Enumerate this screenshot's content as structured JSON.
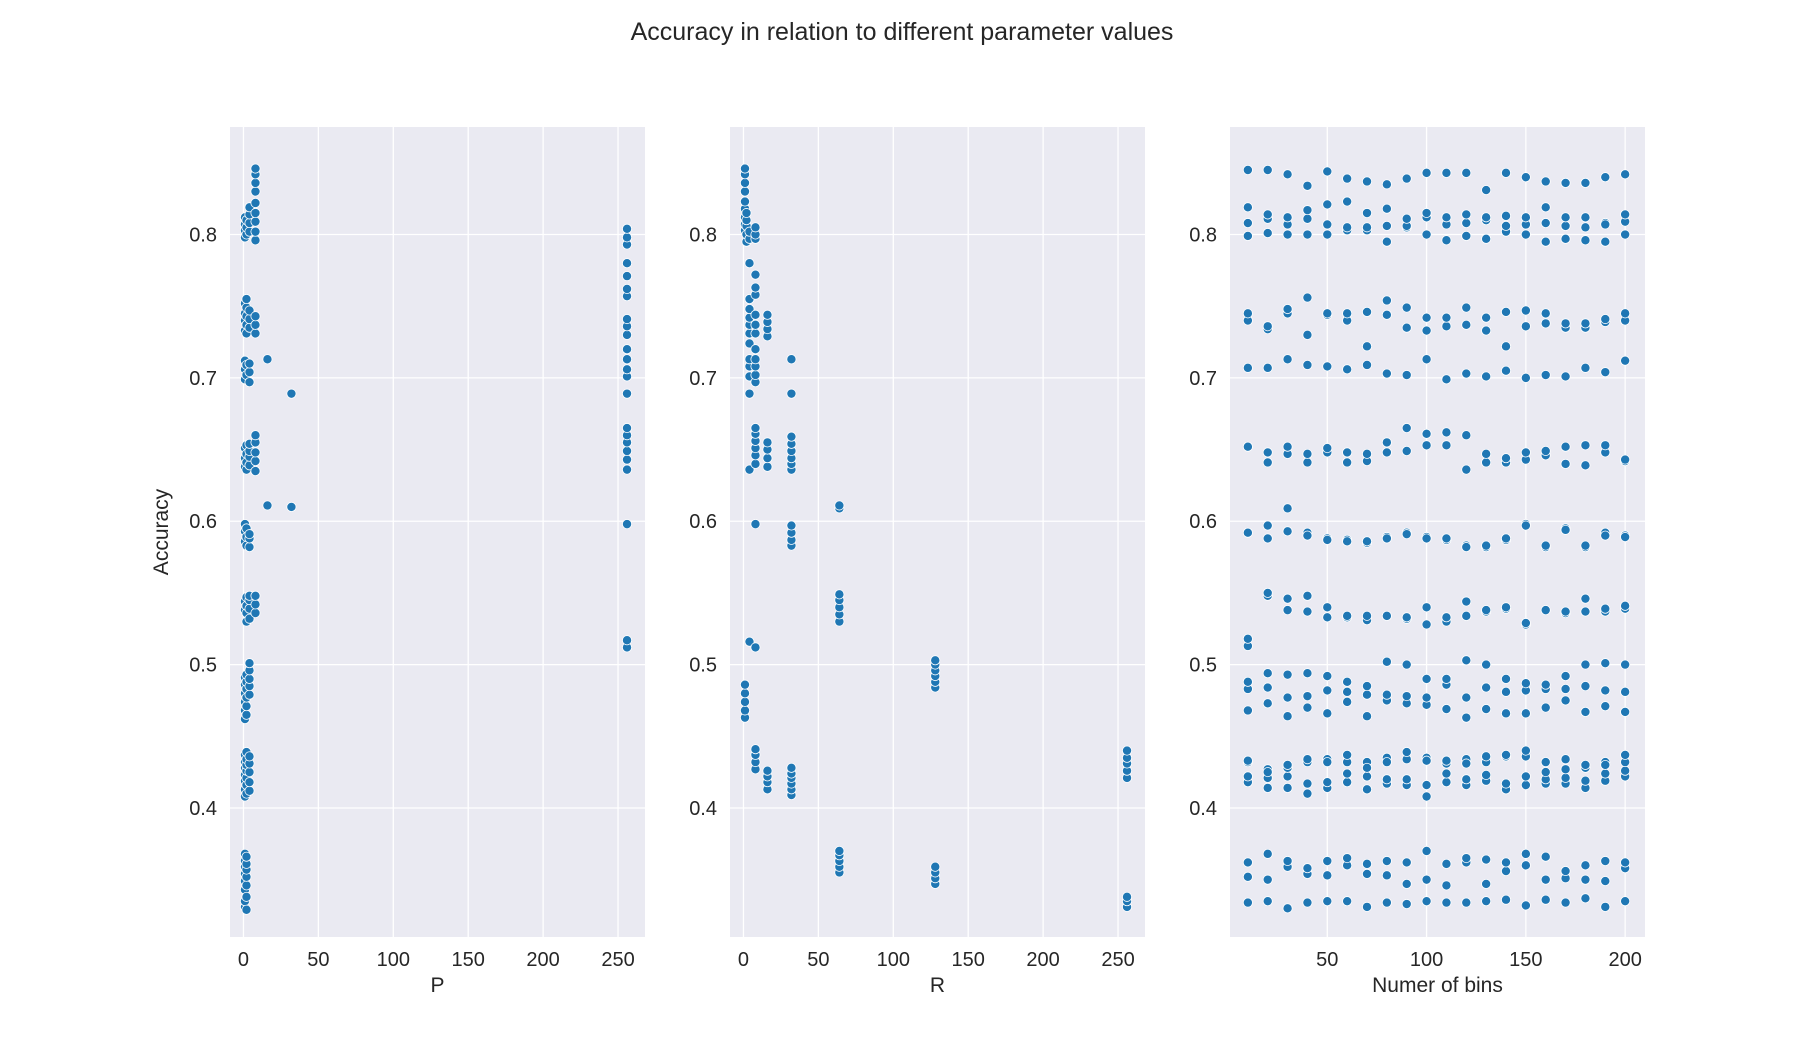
{
  "figure": {
    "title": "Accuracy in relation to different parameter values"
  },
  "colors": {
    "plot_background": "#eaeaf2",
    "grid": "#ffffff",
    "point": "#1f77b4",
    "text": "#262626"
  },
  "chart_data": [
    {
      "type": "scatter",
      "xlabel": "P",
      "ylabel": "Accuracy",
      "xlim": [
        -9,
        268
      ],
      "ylim": [
        0.31,
        0.875
      ],
      "xticks": [
        0,
        50,
        100,
        150,
        200,
        250
      ],
      "yticks": [
        0.4,
        0.5,
        0.6,
        0.7,
        0.8
      ],
      "ytick_labels": [
        "0.4",
        "0.5",
        "0.6",
        "0.7",
        "0.8"
      ],
      "grid": true,
      "groups": [
        {
          "x": 1,
          "y": [
            0.331,
            0.335,
            0.343,
            0.349,
            0.354,
            0.359,
            0.363,
            0.368,
            0.408,
            0.413,
            0.419,
            0.423,
            0.428,
            0.432,
            0.437,
            0.462,
            0.468,
            0.474,
            0.48,
            0.486,
            0.491,
            0.538,
            0.544,
            0.586,
            0.593,
            0.598,
            0.638,
            0.644,
            0.651,
            0.699,
            0.706,
            0.712,
            0.733,
            0.74,
            0.745,
            0.752,
            0.798,
            0.803,
            0.807,
            0.812
          ]
        },
        {
          "x": 2,
          "y": [
            0.329,
            0.338,
            0.346,
            0.352,
            0.357,
            0.361,
            0.366,
            0.41,
            0.416,
            0.421,
            0.426,
            0.43,
            0.434,
            0.439,
            0.465,
            0.471,
            0.477,
            0.483,
            0.488,
            0.493,
            0.53,
            0.536,
            0.541,
            0.547,
            0.583,
            0.589,
            0.595,
            0.636,
            0.641,
            0.647,
            0.653,
            0.702,
            0.709,
            0.731,
            0.737,
            0.743,
            0.749,
            0.755,
            0.8,
            0.805,
            0.81
          ]
        },
        {
          "x": 4,
          "y": [
            0.412,
            0.418,
            0.425,
            0.431,
            0.436,
            0.479,
            0.485,
            0.49,
            0.496,
            0.501,
            0.532,
            0.539,
            0.545,
            0.548,
            0.582,
            0.588,
            0.591,
            0.639,
            0.645,
            0.649,
            0.654,
            0.697,
            0.704,
            0.71,
            0.735,
            0.741,
            0.747,
            0.802,
            0.808,
            0.814,
            0.819
          ]
        },
        {
          "x": 8,
          "y": [
            0.536,
            0.542,
            0.548,
            0.635,
            0.642,
            0.648,
            0.655,
            0.66,
            0.731,
            0.737,
            0.743,
            0.796,
            0.802,
            0.809,
            0.815,
            0.822,
            0.83,
            0.836,
            0.842,
            0.846
          ]
        },
        {
          "x": 16,
          "y": [
            0.611,
            0.713
          ]
        },
        {
          "x": 32,
          "y": [
            0.61,
            0.689
          ]
        },
        {
          "x": 256,
          "y": [
            0.512,
            0.517,
            0.598,
            0.636,
            0.643,
            0.649,
            0.655,
            0.66,
            0.665,
            0.689,
            0.701,
            0.706,
            0.713,
            0.72,
            0.73,
            0.736,
            0.741,
            0.757,
            0.762,
            0.771,
            0.78,
            0.793,
            0.798,
            0.804
          ]
        }
      ]
    },
    {
      "type": "scatter",
      "xlabel": "R",
      "ylabel": "",
      "xlim": [
        -9,
        268
      ],
      "ylim": [
        0.31,
        0.875
      ],
      "xticks": [
        0,
        50,
        100,
        150,
        200,
        250
      ],
      "yticks": [
        0.4,
        0.5,
        0.6,
        0.7,
        0.8
      ],
      "ytick_labels": [
        "0.4",
        "0.5",
        "0.6",
        "0.7",
        "0.8"
      ],
      "grid": true,
      "groups": [
        {
          "x": 1,
          "y": [
            0.463,
            0.468,
            0.474,
            0.48,
            0.486,
            0.803,
            0.807,
            0.812,
            0.818,
            0.823,
            0.83,
            0.836,
            0.842,
            0.846
          ]
        },
        {
          "x": 2,
          "y": [
            0.795,
            0.8,
            0.806,
            0.81,
            0.815
          ]
        },
        {
          "x": 4,
          "y": [
            0.516,
            0.636,
            0.689,
            0.701,
            0.708,
            0.713,
            0.724,
            0.731,
            0.737,
            0.742,
            0.748,
            0.755,
            0.78,
            0.797,
            0.802
          ]
        },
        {
          "x": 8,
          "y": [
            0.427,
            0.432,
            0.437,
            0.441,
            0.512,
            0.598,
            0.64,
            0.646,
            0.651,
            0.656,
            0.661,
            0.665,
            0.697,
            0.702,
            0.708,
            0.713,
            0.72,
            0.731,
            0.737,
            0.744,
            0.758,
            0.763,
            0.772,
            0.797,
            0.8,
            0.805
          ]
        },
        {
          "x": 16,
          "y": [
            0.413,
            0.418,
            0.422,
            0.426,
            0.638,
            0.644,
            0.65,
            0.655,
            0.729,
            0.734,
            0.739,
            0.744
          ]
        },
        {
          "x": 32,
          "y": [
            0.409,
            0.413,
            0.417,
            0.421,
            0.424,
            0.428,
            0.583,
            0.587,
            0.592,
            0.597,
            0.636,
            0.64,
            0.644,
            0.649,
            0.654,
            0.659,
            0.689,
            0.713
          ]
        },
        {
          "x": 64,
          "y": [
            0.355,
            0.359,
            0.363,
            0.367,
            0.37,
            0.53,
            0.535,
            0.54,
            0.545,
            0.549,
            0.609,
            0.611
          ]
        },
        {
          "x": 128,
          "y": [
            0.347,
            0.351,
            0.355,
            0.359,
            0.484,
            0.488,
            0.492,
            0.496,
            0.5,
            0.503
          ]
        },
        {
          "x": 256,
          "y": [
            0.331,
            0.335,
            0.338,
            0.421,
            0.426,
            0.431,
            0.435,
            0.44
          ]
        }
      ]
    },
    {
      "type": "scatter",
      "xlabel": "Numer of bins",
      "ylabel": "",
      "xlim": [
        1,
        210
      ],
      "ylim": [
        0.31,
        0.875
      ],
      "xticks": [
        50,
        100,
        150,
        200
      ],
      "yticks": [
        0.4,
        0.5,
        0.6,
        0.7,
        0.8
      ],
      "ytick_labels": [
        "0.4",
        "0.5",
        "0.6",
        "0.7",
        "0.8"
      ],
      "grid": true,
      "x": [
        10,
        20,
        30,
        40,
        50,
        60,
        70,
        80,
        90,
        100,
        110,
        120,
        130,
        140,
        150,
        160,
        170,
        180,
        190,
        200
      ],
      "bands": [
        [
          0.334,
          0.335,
          0.33,
          0.334,
          0.335,
          0.335,
          0.331,
          0.334,
          0.333,
          0.335,
          0.334,
          0.334,
          0.335,
          0.336,
          0.332,
          0.336,
          0.334,
          0.337,
          0.331,
          0.335
        ],
        [
          0.352,
          0.35,
          0.359,
          0.354,
          0.353,
          0.36,
          0.354,
          0.353,
          0.347,
          0.35,
          0.346,
          0.362,
          0.347,
          0.356,
          0.36,
          0.35,
          0.351,
          0.35,
          0.349,
          0.358
        ],
        [
          0.362,
          0.368,
          0.363,
          0.358,
          0.363,
          0.365,
          0.361,
          0.363,
          0.362,
          0.37,
          0.361,
          0.365,
          0.364,
          0.362,
          0.368,
          0.366,
          0.356,
          0.36,
          0.363,
          0.362
        ],
        [
          0.418,
          0.414,
          0.414,
          0.41,
          0.414,
          0.418,
          0.413,
          0.417,
          0.416,
          0.408,
          0.418,
          0.416,
          0.419,
          0.413,
          0.416,
          0.417,
          0.417,
          0.414,
          0.419,
          0.422
        ],
        [
          0.422,
          0.421,
          0.422,
          0.417,
          0.418,
          0.424,
          0.422,
          0.42,
          0.42,
          0.416,
          0.424,
          0.42,
          0.423,
          0.417,
          0.422,
          0.42,
          0.421,
          0.419,
          0.424,
          0.426
        ],
        [
          0.432,
          0.427,
          0.428,
          0.432,
          0.434,
          0.432,
          0.432,
          0.435,
          0.434,
          0.435,
          0.431,
          0.434,
          0.432,
          0.436,
          0.436,
          0.432,
          0.434,
          0.428,
          0.432,
          0.432
        ],
        [
          0.433,
          0.425,
          0.43,
          0.434,
          0.432,
          0.437,
          0.428,
          0.432,
          0.439,
          0.433,
          0.433,
          0.431,
          0.436,
          0.437,
          0.44,
          0.425,
          0.427,
          0.43,
          0.43,
          0.437
        ],
        [
          0.468,
          0.473,
          0.464,
          0.47,
          0.466,
          0.474,
          0.464,
          0.475,
          0.473,
          0.472,
          0.469,
          0.463,
          0.469,
          0.466,
          0.466,
          0.47,
          0.475,
          0.467,
          0.471,
          0.467
        ],
        [
          0.483,
          0.484,
          0.477,
          0.478,
          0.482,
          0.481,
          0.479,
          0.479,
          0.478,
          0.477,
          0.486,
          0.477,
          0.484,
          0.481,
          0.482,
          0.483,
          0.483,
          0.485,
          0.482,
          0.481
        ],
        [
          0.488,
          0.494,
          0.493,
          0.494,
          0.492,
          0.488,
          0.485,
          0.502,
          0.5,
          0.49,
          0.49,
          0.503,
          0.5,
          0.49,
          0.487,
          0.486,
          0.492,
          0.5,
          0.501,
          0.5
        ],
        [
          0.513,
          0.548,
          0.538,
          0.537,
          0.533,
          0.533,
          0.531,
          0.534,
          0.532,
          0.528,
          0.53,
          0.534,
          0.537,
          0.539,
          0.528,
          0.538,
          0.536,
          0.537,
          0.537,
          0.539
        ],
        [
          0.518,
          0.55,
          0.546,
          0.548,
          0.54,
          0.534,
          0.534,
          0.534,
          0.533,
          0.54,
          0.533,
          0.544,
          0.538,
          0.54,
          0.529,
          0.538,
          0.537,
          0.546,
          0.539,
          0.541
        ],
        [
          0.592,
          0.597,
          0.609,
          0.592,
          0.588,
          0.587,
          0.585,
          0.589,
          0.592,
          0.589,
          0.587,
          0.583,
          0.582,
          0.587,
          0.598,
          0.582,
          0.595,
          0.582,
          0.592,
          0.59
        ],
        [
          0.592,
          0.588,
          0.593,
          0.59,
          0.587,
          0.586,
          0.586,
          0.588,
          0.591,
          0.588,
          0.588,
          0.582,
          0.583,
          0.588,
          0.597,
          0.583,
          0.594,
          0.583,
          0.59,
          0.589
        ],
        [
          0.652,
          0.641,
          0.647,
          0.641,
          0.648,
          0.641,
          0.642,
          0.648,
          0.649,
          0.653,
          0.653,
          0.636,
          0.641,
          0.641,
          0.643,
          0.646,
          0.64,
          0.639,
          0.648,
          0.642
        ],
        [
          0.652,
          0.648,
          0.652,
          0.647,
          0.651,
          0.648,
          0.647,
          0.655,
          0.665,
          0.661,
          0.662,
          0.66,
          0.647,
          0.644,
          0.648,
          0.649,
          0.652,
          0.653,
          0.653,
          0.643
        ],
        [
          0.707,
          0.707,
          0.713,
          0.709,
          0.708,
          0.706,
          0.709,
          0.703,
          0.702,
          0.713,
          0.699,
          0.703,
          0.701,
          0.705,
          0.7,
          0.702,
          0.701,
          0.707,
          0.704,
          0.712
        ],
        [
          0.74,
          0.734,
          0.745,
          0.73,
          0.744,
          0.74,
          0.722,
          0.744,
          0.735,
          0.733,
          0.736,
          0.737,
          0.733,
          0.722,
          0.736,
          0.738,
          0.735,
          0.735,
          0.739,
          0.74
        ],
        [
          0.745,
          0.736,
          0.748,
          0.756,
          0.745,
          0.745,
          0.746,
          0.754,
          0.749,
          0.742,
          0.742,
          0.749,
          0.742,
          0.746,
          0.747,
          0.745,
          0.738,
          0.738,
          0.741,
          0.745
        ],
        [
          0.799,
          0.801,
          0.8,
          0.8,
          0.8,
          0.803,
          0.803,
          0.795,
          0.805,
          0.8,
          0.796,
          0.799,
          0.797,
          0.802,
          0.8,
          0.795,
          0.797,
          0.796,
          0.795,
          0.8
        ],
        [
          0.808,
          0.811,
          0.807,
          0.811,
          0.807,
          0.805,
          0.805,
          0.806,
          0.806,
          0.812,
          0.807,
          0.808,
          0.81,
          0.806,
          0.807,
          0.808,
          0.806,
          0.805,
          0.808,
          0.809
        ],
        [
          0.819,
          0.814,
          0.812,
          0.817,
          0.821,
          0.823,
          0.815,
          0.818,
          0.811,
          0.815,
          0.812,
          0.814,
          0.812,
          0.813,
          0.812,
          0.819,
          0.812,
          0.812,
          0.807,
          0.814
        ],
        [
          0.845,
          0.845,
          0.842,
          0.834,
          0.844,
          0.839,
          0.837,
          0.835,
          0.839,
          0.843,
          0.843,
          0.843,
          0.831,
          0.843,
          0.84,
          0.837,
          0.836,
          0.836,
          0.84,
          0.842
        ]
      ]
    }
  ]
}
